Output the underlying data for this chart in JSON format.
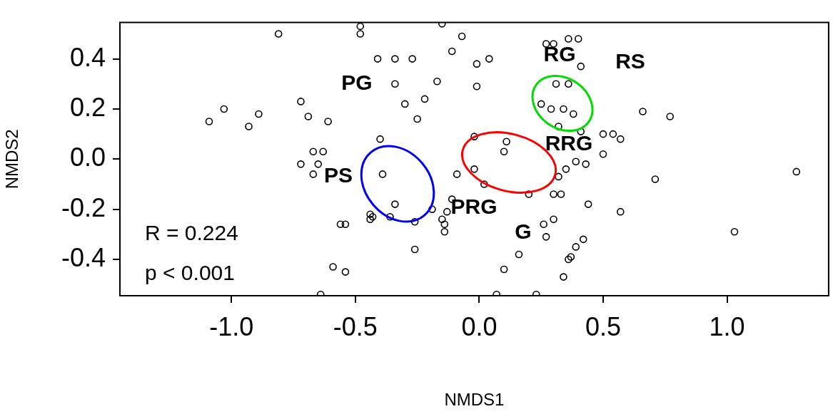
{
  "chart_data": {
    "type": "scatter",
    "xlabel": "NMDS1",
    "ylabel": "NMDS2",
    "marker": "circle",
    "grid": false,
    "legend": false,
    "xlim": [
      -1.45,
      1.41
    ],
    "ylim": [
      -0.545,
      0.545
    ],
    "xticks": [
      {
        "value": -1,
        "label": "-1.0"
      },
      {
        "value": -0.5,
        "label": "-0.5"
      },
      {
        "value": 0,
        "label": "0.0"
      },
      {
        "value": 0.5,
        "label": "0.5"
      },
      {
        "value": 1,
        "label": "1.0"
      }
    ],
    "yticks": [
      {
        "value": -0.4,
        "label": "-0.4"
      },
      {
        "value": -0.2,
        "label": "-0.2"
      },
      {
        "value": 0,
        "label": "0.0"
      },
      {
        "value": 0.2,
        "label": "0.2"
      },
      {
        "value": 0.4,
        "label": "0.4"
      }
    ],
    "series": [
      {
        "color": "#000000",
        "x": [
          -1.09,
          -1.03,
          -0.93,
          -0.89,
          -0.81,
          -0.72,
          -0.69,
          -0.61,
          -0.67,
          -0.63,
          -0.72,
          -0.65,
          -0.67,
          -0.48,
          -0.48,
          -0.41,
          -0.34,
          -0.27,
          -0.34,
          -0.3,
          -0.22,
          -0.25,
          -0.17,
          -0.11,
          -0.07,
          -0.01,
          0.04,
          -0.01,
          -0.4,
          -0.39,
          -0.34,
          -0.44,
          -0.43,
          -0.44,
          -0.36,
          -0.26,
          -0.19,
          -0.26,
          -0.15,
          -0.14,
          -0.13,
          -0.11,
          -0.09,
          -0.14,
          -0.56,
          -0.54,
          -0.59,
          -0.54,
          -0.64,
          -0.02,
          -0.02,
          0.02,
          0.11,
          0.1,
          0.2,
          0.3,
          0.33,
          0.32,
          0.35,
          0.39,
          0.43,
          0.44,
          0.3,
          0.26,
          0.27,
          0.16,
          0.1,
          0.42,
          0.39,
          0.37,
          0.36,
          0.34,
          0.07,
          0.23,
          0.27,
          0.3,
          0.36,
          0.4,
          0.41,
          0.31,
          0.36,
          0.25,
          0.29,
          0.34,
          0.38,
          0.32,
          0.41,
          0.5,
          0.54,
          0.57,
          0.5,
          0.66,
          0.77,
          0.71,
          0.57,
          1.03,
          1.28,
          -0.15
        ],
        "values": [
          0.15,
          0.2,
          0.13,
          0.18,
          0.5,
          0.23,
          0.17,
          0.15,
          0.03,
          0.03,
          -0.02,
          -0.02,
          -0.06,
          0.53,
          0.5,
          0.4,
          0.4,
          0.4,
          0.3,
          0.22,
          0.24,
          0.16,
          0.31,
          0.43,
          0.49,
          0.38,
          0.4,
          0.29,
          0.08,
          -0.06,
          -0.18,
          -0.22,
          -0.23,
          -0.24,
          -0.23,
          -0.25,
          -0.2,
          -0.36,
          -0.24,
          -0.26,
          -0.21,
          -0.16,
          -0.06,
          -0.29,
          -0.26,
          -0.26,
          -0.43,
          -0.45,
          -0.54,
          0.09,
          -0.04,
          -0.1,
          0.07,
          0.03,
          -0.14,
          -0.14,
          -0.14,
          -0.07,
          -0.04,
          -0.01,
          -0.02,
          -0.18,
          -0.24,
          -0.26,
          -0.31,
          -0.38,
          -0.44,
          -0.32,
          -0.35,
          -0.39,
          -0.4,
          -0.47,
          -0.54,
          -0.54,
          0.46,
          0.46,
          0.48,
          0.48,
          0.37,
          0.3,
          0.3,
          0.22,
          0.2,
          0.2,
          0.18,
          0.13,
          0.11,
          0.1,
          0.1,
          0.08,
          0.02,
          0.19,
          0.17,
          -0.08,
          -0.21,
          -0.29,
          -0.05,
          0.54
        ]
      }
    ],
    "annotations": [
      "PG",
      "RG",
      "RS",
      "RRG",
      "PS",
      "PRG",
      "G",
      "R = 0.224",
      "p < 0.001"
    ]
  }
}
